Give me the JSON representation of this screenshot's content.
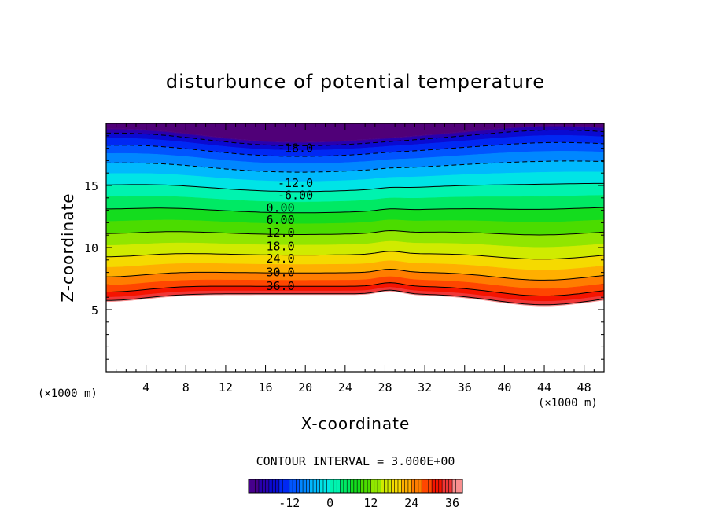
{
  "chart_data": {
    "type": "contour",
    "title": "disturbunce of potential temperature",
    "xlabel": "X-coordinate",
    "ylabel": "Z-coordinate",
    "x_unit_left": "(×1000 m)",
    "x_unit_right": "(×1000 m)",
    "xlim": [
      0,
      50
    ],
    "ylim": [
      0,
      20
    ],
    "x_ticks": [
      4,
      8,
      12,
      16,
      20,
      24,
      28,
      32,
      36,
      40,
      44,
      48
    ],
    "x_tick_labels": [
      "4",
      "8",
      "12",
      "16",
      "20",
      "24",
      "28",
      "32",
      "36",
      "40",
      "44",
      "48"
    ],
    "y_ticks": [
      5,
      10,
      15
    ],
    "y_tick_labels": [
      "5",
      "10",
      "15"
    ],
    "contour_interval_text": "CONTOUR INTERVAL = 3.000E+00",
    "contour_interval": 3,
    "value_range": [
      -24,
      39
    ],
    "contour_labels": [
      {
        "text": "-18.0",
        "x": 19,
        "z": 18.0
      },
      {
        "text": "-12.0",
        "x": 19,
        "z": 15.2
      },
      {
        "text": "-6.00",
        "x": 19,
        "z": 14.2
      },
      {
        "text": "0.00",
        "x": 17.5,
        "z": 13.2
      },
      {
        "text": "6.00",
        "x": 17.5,
        "z": 12.2
      },
      {
        "text": "12.0",
        "x": 17.5,
        "z": 11.2
      },
      {
        "text": "18.0",
        "x": 17.5,
        "z": 10.1
      },
      {
        "text": "24.0",
        "x": 17.5,
        "z": 9.1
      },
      {
        "text": "30.0",
        "x": 17.5,
        "z": 8.0
      },
      {
        "text": "36.0",
        "x": 17.5,
        "z": 6.9
      }
    ],
    "colorbar": {
      "min": -24,
      "max": 39,
      "ticks": [
        -12,
        0,
        12,
        24,
        36
      ],
      "tick_labels": [
        "-12",
        "0",
        "12",
        "24",
        "36"
      ]
    }
  }
}
